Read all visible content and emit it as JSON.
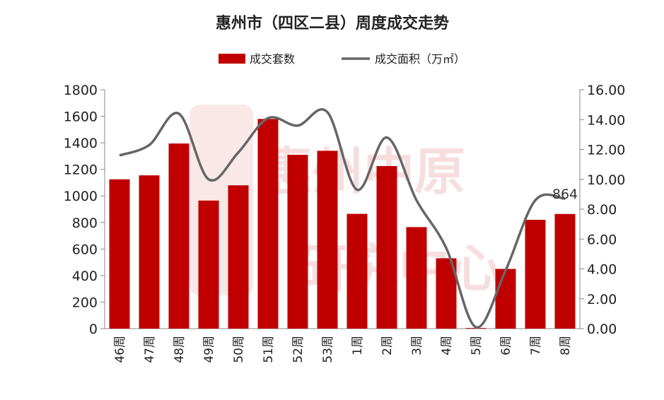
{
  "chart_data": {
    "type": "bar",
    "title": "惠州市（四区二县）周度成交走势",
    "categories": [
      "46周",
      "47周",
      "48周",
      "49周",
      "50周",
      "51周",
      "52周",
      "53周",
      "1周",
      "2周",
      "3周",
      "4周",
      "5周",
      "6周",
      "7周",
      "8周"
    ],
    "series": [
      {
        "name": "成交套数",
        "type": "bar",
        "axis": "left",
        "color": "#c00000",
        "values": [
          1125,
          1155,
          1395,
          965,
          1080,
          1580,
          1310,
          1340,
          865,
          1225,
          765,
          530,
          5,
          450,
          820,
          864
        ]
      },
      {
        "name": "成交面积（万㎡）",
        "type": "line",
        "axis": "right",
        "color": "#666666",
        "values": [
          11.6,
          12.3,
          14.4,
          10.0,
          11.8,
          14.1,
          13.6,
          14.5,
          9.3,
          12.8,
          8.6,
          5.4,
          0.1,
          3.9,
          8.6,
          8.7
        ]
      }
    ],
    "y_left": {
      "min": 0,
      "max": 1800,
      "step": 200,
      "ticks": [
        "0",
        "200",
        "400",
        "600",
        "800",
        "1000",
        "1200",
        "1400",
        "1600",
        "1800"
      ]
    },
    "y_right": {
      "min": 0,
      "max": 16,
      "step": 2,
      "ticks": [
        "0.00",
        "2.00",
        "4.00",
        "6.00",
        "8.00",
        "10.00",
        "12.00",
        "14.00",
        "16.00"
      ]
    },
    "annotations": [
      {
        "category": "8周",
        "series": "成交套数",
        "text": "864"
      }
    ],
    "legend_position": "top-center",
    "grid": false
  },
  "watermark": {
    "text": "惠州中原",
    "subtext": "研究中心",
    "color": "#e05a5a"
  }
}
